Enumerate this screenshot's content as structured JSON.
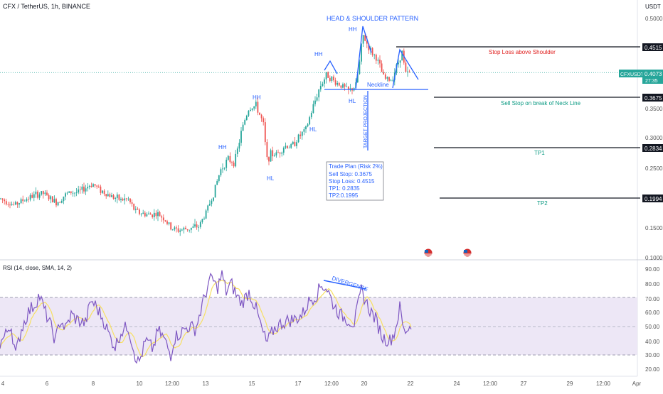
{
  "header": {
    "symbol_title": "CFX / TetherUS, 1h, BINANCE"
  },
  "axis": {
    "currency": "USDT"
  },
  "price_axis_ticks": [
    "0.5000",
    "0.3500",
    "0.3000",
    "0.2500",
    "0.1500",
    "0.1000"
  ],
  "price_badges": {
    "stop_loss": "0.4515",
    "sell_stop": "0.3675",
    "tp1": "0.2834",
    "tp2": "0.1994",
    "current_symbol": "CFXUSDT",
    "current_price": "0.4073",
    "countdown": "27:35"
  },
  "annotations": {
    "pattern_title": "HEAD & SHOULDER PATTERN",
    "stop_loss_text": "Stop Loss above Shoulder",
    "neckline": "Neckline",
    "sell_stop_text": "Sell Stop on break of Neck Line",
    "tp1": "TP1",
    "tp2": "TP2",
    "target_projection": "TARGET PROJECTION",
    "divergence": "DIVERGENCE",
    "swing_labels": [
      {
        "text": "HH"
      },
      {
        "text": "HH"
      },
      {
        "text": "HH"
      },
      {
        "text": "HH"
      },
      {
        "text": "HL"
      },
      {
        "text": "HL"
      },
      {
        "text": "HL"
      }
    ]
  },
  "trade_plan": {
    "lines": [
      "Trade Plan (Risk 2%)",
      "Sell Stop: 0.3675",
      "Stop Loss: 0.4515",
      "TP1: 0.2835",
      "TP2:0.1995"
    ]
  },
  "rsi": {
    "title": "RSI (14, close, SMA, 14, 2)",
    "ticks": [
      "90.00",
      "80.00",
      "70.00",
      "60.00",
      "50.00",
      "40.00",
      "30.00",
      "20.00"
    ]
  },
  "x_axis_ticks": [
    "4",
    "6",
    "8",
    "10",
    "12:00",
    "13",
    "15",
    "17",
    "12:00",
    "20",
    "22",
    "24",
    "12:00",
    "27",
    "29",
    "12:00",
    "Apr"
  ],
  "colors": {
    "up": "#26a69a",
    "down": "#ef5350",
    "blue_line": "#2962ff",
    "red_text": "#e0201f",
    "teal_text": "#089981",
    "rsi_line": "#7e57c2",
    "rsi_sma": "#f7e063",
    "rsi_band": "#ede7f6"
  },
  "chart_data": [
    {
      "type": "candlestick",
      "title": "CFX / TetherUS, 1h, BINANCE",
      "ylabel": "USDT",
      "ylim": [
        0.1,
        0.51
      ],
      "x_ticks": [
        "4",
        "6",
        "8",
        "10",
        "12:00",
        "13",
        "15",
        "17",
        "12:00",
        "20",
        "22",
        "24",
        "12:00",
        "27",
        "29",
        "12:00",
        "Apr"
      ],
      "close_path": [
        [
          0,
          0.197
        ],
        [
          10,
          0.192
        ],
        [
          20,
          0.186
        ],
        [
          30,
          0.193
        ],
        [
          40,
          0.198
        ],
        [
          50,
          0.203
        ],
        [
          60,
          0.206
        ],
        [
          70,
          0.197
        ],
        [
          80,
          0.19
        ],
        [
          90,
          0.202
        ],
        [
          100,
          0.208
        ],
        [
          110,
          0.207
        ],
        [
          120,
          0.215
        ],
        [
          130,
          0.222
        ],
        [
          140,
          0.212
        ],
        [
          150,
          0.205
        ],
        [
          160,
          0.199
        ],
        [
          170,
          0.195
        ],
        [
          180,
          0.196
        ],
        [
          190,
          0.176
        ],
        [
          200,
          0.172
        ],
        [
          210,
          0.17
        ],
        [
          220,
          0.172
        ],
        [
          230,
          0.165
        ],
        [
          240,
          0.148
        ],
        [
          250,
          0.144
        ],
        [
          260,
          0.146
        ],
        [
          270,
          0.148
        ],
        [
          280,
          0.151
        ],
        [
          290,
          0.175
        ],
        [
          300,
          0.205
        ],
        [
          310,
          0.245
        ],
        [
          320,
          0.262
        ],
        [
          330,
          0.258
        ],
        [
          340,
          0.312
        ],
        [
          345,
          0.332
        ],
        [
          350,
          0.348
        ],
        [
          360,
          0.352
        ],
        [
          370,
          0.322
        ],
        [
          375,
          0.262
        ],
        [
          380,
          0.27
        ],
        [
          390,
          0.272
        ],
        [
          400,
          0.285
        ],
        [
          410,
          0.284
        ],
        [
          420,
          0.3
        ],
        [
          430,
          0.312
        ],
        [
          440,
          0.35
        ],
        [
          450,
          0.385
        ],
        [
          460,
          0.405
        ],
        [
          470,
          0.392
        ],
        [
          480,
          0.386
        ],
        [
          490,
          0.376
        ],
        [
          500,
          0.385
        ],
        [
          505,
          0.42
        ],
        [
          510,
          0.47
        ],
        [
          520,
          0.445
        ],
        [
          530,
          0.43
        ],
        [
          540,
          0.397
        ],
        [
          550,
          0.395
        ],
        [
          560,
          0.425
        ],
        [
          565,
          0.443
        ],
        [
          570,
          0.405
        ],
        [
          578,
          0.407
        ]
      ],
      "levels": [
        {
          "name": "Stop Loss above Shoulder",
          "value": 0.4515
        },
        {
          "name": "Sell Stop on break of Neck Line",
          "value": 0.3675
        },
        {
          "name": "TP1",
          "value": 0.2834
        },
        {
          "name": "TP2",
          "value": 0.1994
        }
      ],
      "last_price": 0.4073
    },
    {
      "type": "line",
      "title": "RSI (14, close, SMA, 14, 2)",
      "ylim": [
        18,
        92
      ],
      "y_ticks": [
        90,
        80,
        70,
        60,
        50,
        40,
        30,
        20
      ],
      "bands": [
        70,
        50,
        30
      ],
      "rsi_path": [
        [
          0,
          38
        ],
        [
          8,
          44
        ],
        [
          15,
          52
        ],
        [
          22,
          30
        ],
        [
          30,
          48
        ],
        [
          40,
          60
        ],
        [
          50,
          66
        ],
        [
          55,
          72
        ],
        [
          62,
          62
        ],
        [
          70,
          52
        ],
        [
          78,
          40
        ],
        [
          85,
          55
        ],
        [
          92,
          48
        ],
        [
          100,
          58
        ],
        [
          110,
          54
        ],
        [
          120,
          52
        ],
        [
          128,
          68
        ],
        [
          135,
          64
        ],
        [
          145,
          55
        ],
        [
          155,
          42
        ],
        [
          162,
          36
        ],
        [
          170,
          46
        ],
        [
          180,
          50
        ],
        [
          190,
          30
        ],
        [
          195,
          24
        ],
        [
          205,
          40
        ],
        [
          215,
          34
        ],
        [
          222,
          47
        ],
        [
          230,
          42
        ],
        [
          240,
          30
        ],
        [
          245,
          42
        ],
        [
          255,
          46
        ],
        [
          265,
          50
        ],
        [
          275,
          48
        ],
        [
          285,
          66
        ],
        [
          292,
          78
        ],
        [
          298,
          84
        ],
        [
          305,
          76
        ],
        [
          312,
          86
        ],
        [
          318,
          74
        ],
        [
          325,
          80
        ],
        [
          332,
          72
        ],
        [
          340,
          66
        ],
        [
          350,
          74
        ],
        [
          360,
          62
        ],
        [
          368,
          48
        ],
        [
          375,
          38
        ],
        [
          385,
          48
        ],
        [
          395,
          52
        ],
        [
          405,
          54
        ],
        [
          415,
          55
        ],
        [
          425,
          58
        ],
        [
          435,
          68
        ],
        [
          445,
          72
        ],
        [
          452,
          79
        ],
        [
          460,
          76
        ],
        [
          468,
          66
        ],
        [
          478,
          58
        ],
        [
          488,
          55
        ],
        [
          498,
          52
        ],
        [
          508,
          75
        ],
        [
          518,
          63
        ],
        [
          528,
          55
        ],
        [
          538,
          42
        ],
        [
          548,
          40
        ],
        [
          555,
          46
        ],
        [
          562,
          63
        ],
        [
          568,
          46
        ],
        [
          576,
          50
        ]
      ],
      "divergence_line": [
        [
          455,
          82
        ],
        [
          515,
          76
        ]
      ]
    }
  ]
}
